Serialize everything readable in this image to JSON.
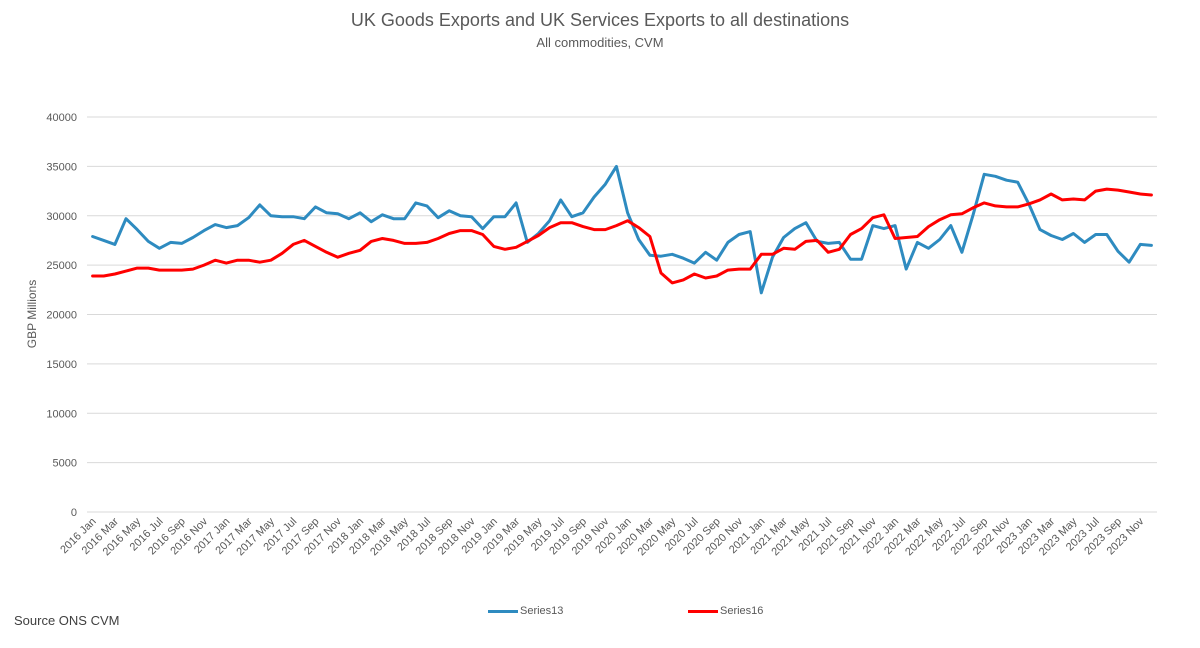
{
  "page": {
    "title": "UK Goods Exports and UK Services Exports to all destinations",
    "subtitle": "All commodities, CVM",
    "source": "Source ONS CVM"
  },
  "chart_data": {
    "type": "line",
    "title": "UK Goods Exports and UK Services Exports to all destinations",
    "subtitle": "All commodities, CVM",
    "xlabel": "",
    "ylabel": "GBP Millions",
    "ylim": [
      0,
      40000
    ],
    "yticks": [
      0,
      5000,
      10000,
      15000,
      20000,
      25000,
      30000,
      35000,
      40000
    ],
    "grid": true,
    "legend_position": "bottom",
    "x": [
      "2016 Jan",
      "2016 Feb",
      "2016 Mar",
      "2016 Apr",
      "2016 May",
      "2016 Jun",
      "2016 Jul",
      "2016 Aug",
      "2016 Sep",
      "2016 Oct",
      "2016 Nov",
      "2016 Dec",
      "2017 Jan",
      "2017 Feb",
      "2017 Mar",
      "2017 Apr",
      "2017 May",
      "2017 Jun",
      "2017 Jul",
      "2017 Aug",
      "2017 Sep",
      "2017 Oct",
      "2017 Nov",
      "2017 Dec",
      "2018 Jan",
      "2018 Feb",
      "2018 Mar",
      "2018 Apr",
      "2018 May",
      "2018 Jun",
      "2018 Jul",
      "2018 Aug",
      "2018 Sep",
      "2018 Oct",
      "2018 Nov",
      "2018 Dec",
      "2019 Jan",
      "2019 Feb",
      "2019 Mar",
      "2019 Apr",
      "2019 May",
      "2019 Jun",
      "2019 Jul",
      "2019 Aug",
      "2019 Sep",
      "2019 Oct",
      "2019 Nov",
      "2019 Dec",
      "2020 Jan",
      "2020 Feb",
      "2020 Mar",
      "2020 Apr",
      "2020 May",
      "2020 Jun",
      "2020 Jul",
      "2020 Aug",
      "2020 Sep",
      "2020 Oct",
      "2020 Nov",
      "2020 Dec",
      "2021 Jan",
      "2021 Feb",
      "2021 Mar",
      "2021 Apr",
      "2021 May",
      "2021 Jun",
      "2021 Jul",
      "2021 Aug",
      "2021 Sep",
      "2021 Oct",
      "2021 Nov",
      "2021 Dec",
      "2022 Jan",
      "2022 Feb",
      "2022 Mar",
      "2022 Apr",
      "2022 May",
      "2022 Jun",
      "2022 Jul",
      "2022 Aug",
      "2022 Sep",
      "2022 Oct",
      "2022 Nov",
      "2022 Dec",
      "2023 Jan",
      "2023 Feb",
      "2023 Mar",
      "2023 Apr",
      "2023 May",
      "2023 Jun",
      "2023 Jul",
      "2023 Aug",
      "2023 Sep",
      "2023 Oct",
      "2023 Nov",
      "2023 Dec"
    ],
    "xtick_labels": [
      "2016 Jan",
      "2016 Mar",
      "2016 May",
      "2016 Jul",
      "2016 Sep",
      "2016 Nov",
      "2017 Jan",
      "2017 Mar",
      "2017 May",
      "2017 Jul",
      "2017 Sep",
      "2017 Nov",
      "2018 Jan",
      "2018 Mar",
      "2018 May",
      "2018 Jul",
      "2018 Sep",
      "2018 Nov",
      "2019 Jan",
      "2019 Mar",
      "2019 May",
      "2019 Jul",
      "2019 Sep",
      "2019 Nov",
      "2020 Jan",
      "2020 Mar",
      "2020 May",
      "2020 Jul",
      "2020 Sep",
      "2020 Nov",
      "2021 Jan",
      "2021 Mar",
      "2021 May",
      "2021 Jul",
      "2021 Sep",
      "2021 Nov",
      "2022 Jan",
      "2022 Mar",
      "2022 May",
      "2022 Jul",
      "2022 Sep",
      "2022 Nov",
      "2023 Jan",
      "2023 Mar",
      "2023 May",
      "2023 Jul",
      "2023 Sep",
      "2023 Nov"
    ],
    "series": [
      {
        "name": "Series13",
        "color": "#2E8BC0",
        "values": [
          27900,
          27500,
          27100,
          29700,
          28600,
          27400,
          26700,
          27300,
          27200,
          27800,
          28500,
          29100,
          28800,
          29000,
          29800,
          31100,
          30000,
          29900,
          29900,
          29700,
          30900,
          30300,
          30200,
          29700,
          30300,
          29400,
          30100,
          29700,
          29700,
          31300,
          31000,
          29800,
          30500,
          30000,
          29900,
          28700,
          29900,
          29900,
          31300,
          27300,
          28200,
          29500,
          31600,
          29900,
          30300,
          31900,
          33200,
          35000,
          30300,
          27600,
          26000,
          25900,
          26100,
          25700,
          25200,
          26300,
          25500,
          27300,
          28100,
          28400,
          22200,
          25800,
          27800,
          28700,
          29300,
          27400,
          27200,
          27300,
          25600,
          25600,
          29000,
          28700,
          29000,
          24600,
          27300,
          26700,
          27600,
          29000,
          26300,
          30100,
          34200,
          34000,
          33600,
          33400,
          31200,
          28600,
          28000,
          27600,
          28200,
          27300,
          28100,
          28100,
          26400,
          25300,
          27100,
          27000
        ]
      },
      {
        "name": "Series16",
        "color": "#FF0000",
        "values": [
          23900,
          23900,
          24100,
          24400,
          24700,
          24700,
          24500,
          24500,
          24500,
          24600,
          25000,
          25500,
          25200,
          25500,
          25500,
          25300,
          25500,
          26200,
          27100,
          27500,
          26900,
          26300,
          25800,
          26200,
          26500,
          27400,
          27700,
          27500,
          27200,
          27200,
          27300,
          27700,
          28200,
          28500,
          28500,
          28100,
          26900,
          26600,
          26800,
          27400,
          28000,
          28800,
          29300,
          29300,
          28900,
          28600,
          28600,
          29000,
          29500,
          28800,
          27900,
          24200,
          23200,
          23500,
          24100,
          23700,
          23900,
          24500,
          24600,
          24600,
          26100,
          26100,
          26700,
          26600,
          27400,
          27500,
          26300,
          26600,
          28100,
          28700,
          29800,
          30100,
          27700,
          27800,
          27900,
          28900,
          29600,
          30100,
          30200,
          30800,
          31300,
          31000,
          30900,
          30900,
          31200,
          31600,
          32200,
          31600,
          31700,
          31600,
          32500,
          32700,
          32600,
          32400,
          32200,
          32100
        ]
      }
    ]
  }
}
